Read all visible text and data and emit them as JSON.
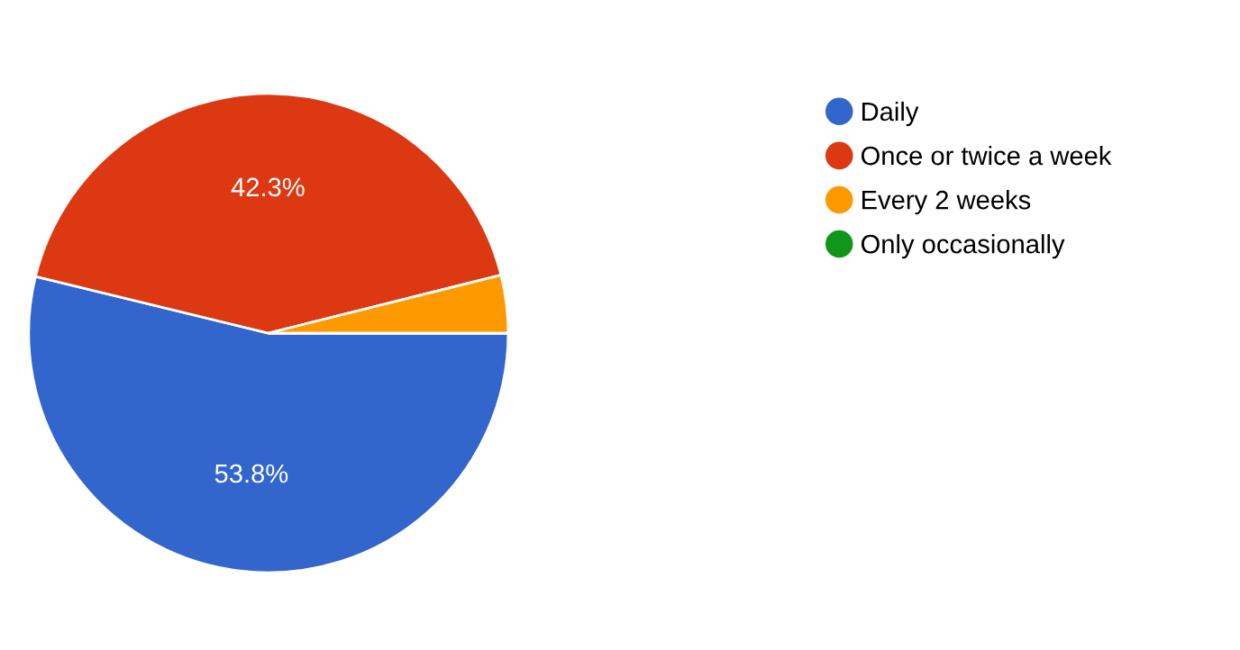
{
  "chart_data": {
    "type": "pie",
    "categories": [
      "Daily",
      "Once or twice a week",
      "Every 2 weeks",
      "Only occasionally"
    ],
    "values": [
      53.8,
      42.3,
      3.9,
      0
    ],
    "colors": [
      "#3366cc",
      "#dc3912",
      "#ff9900",
      "#109618"
    ],
    "value_labels": [
      "53.8%",
      "42.3%",
      null,
      null
    ],
    "legend": "top right"
  }
}
